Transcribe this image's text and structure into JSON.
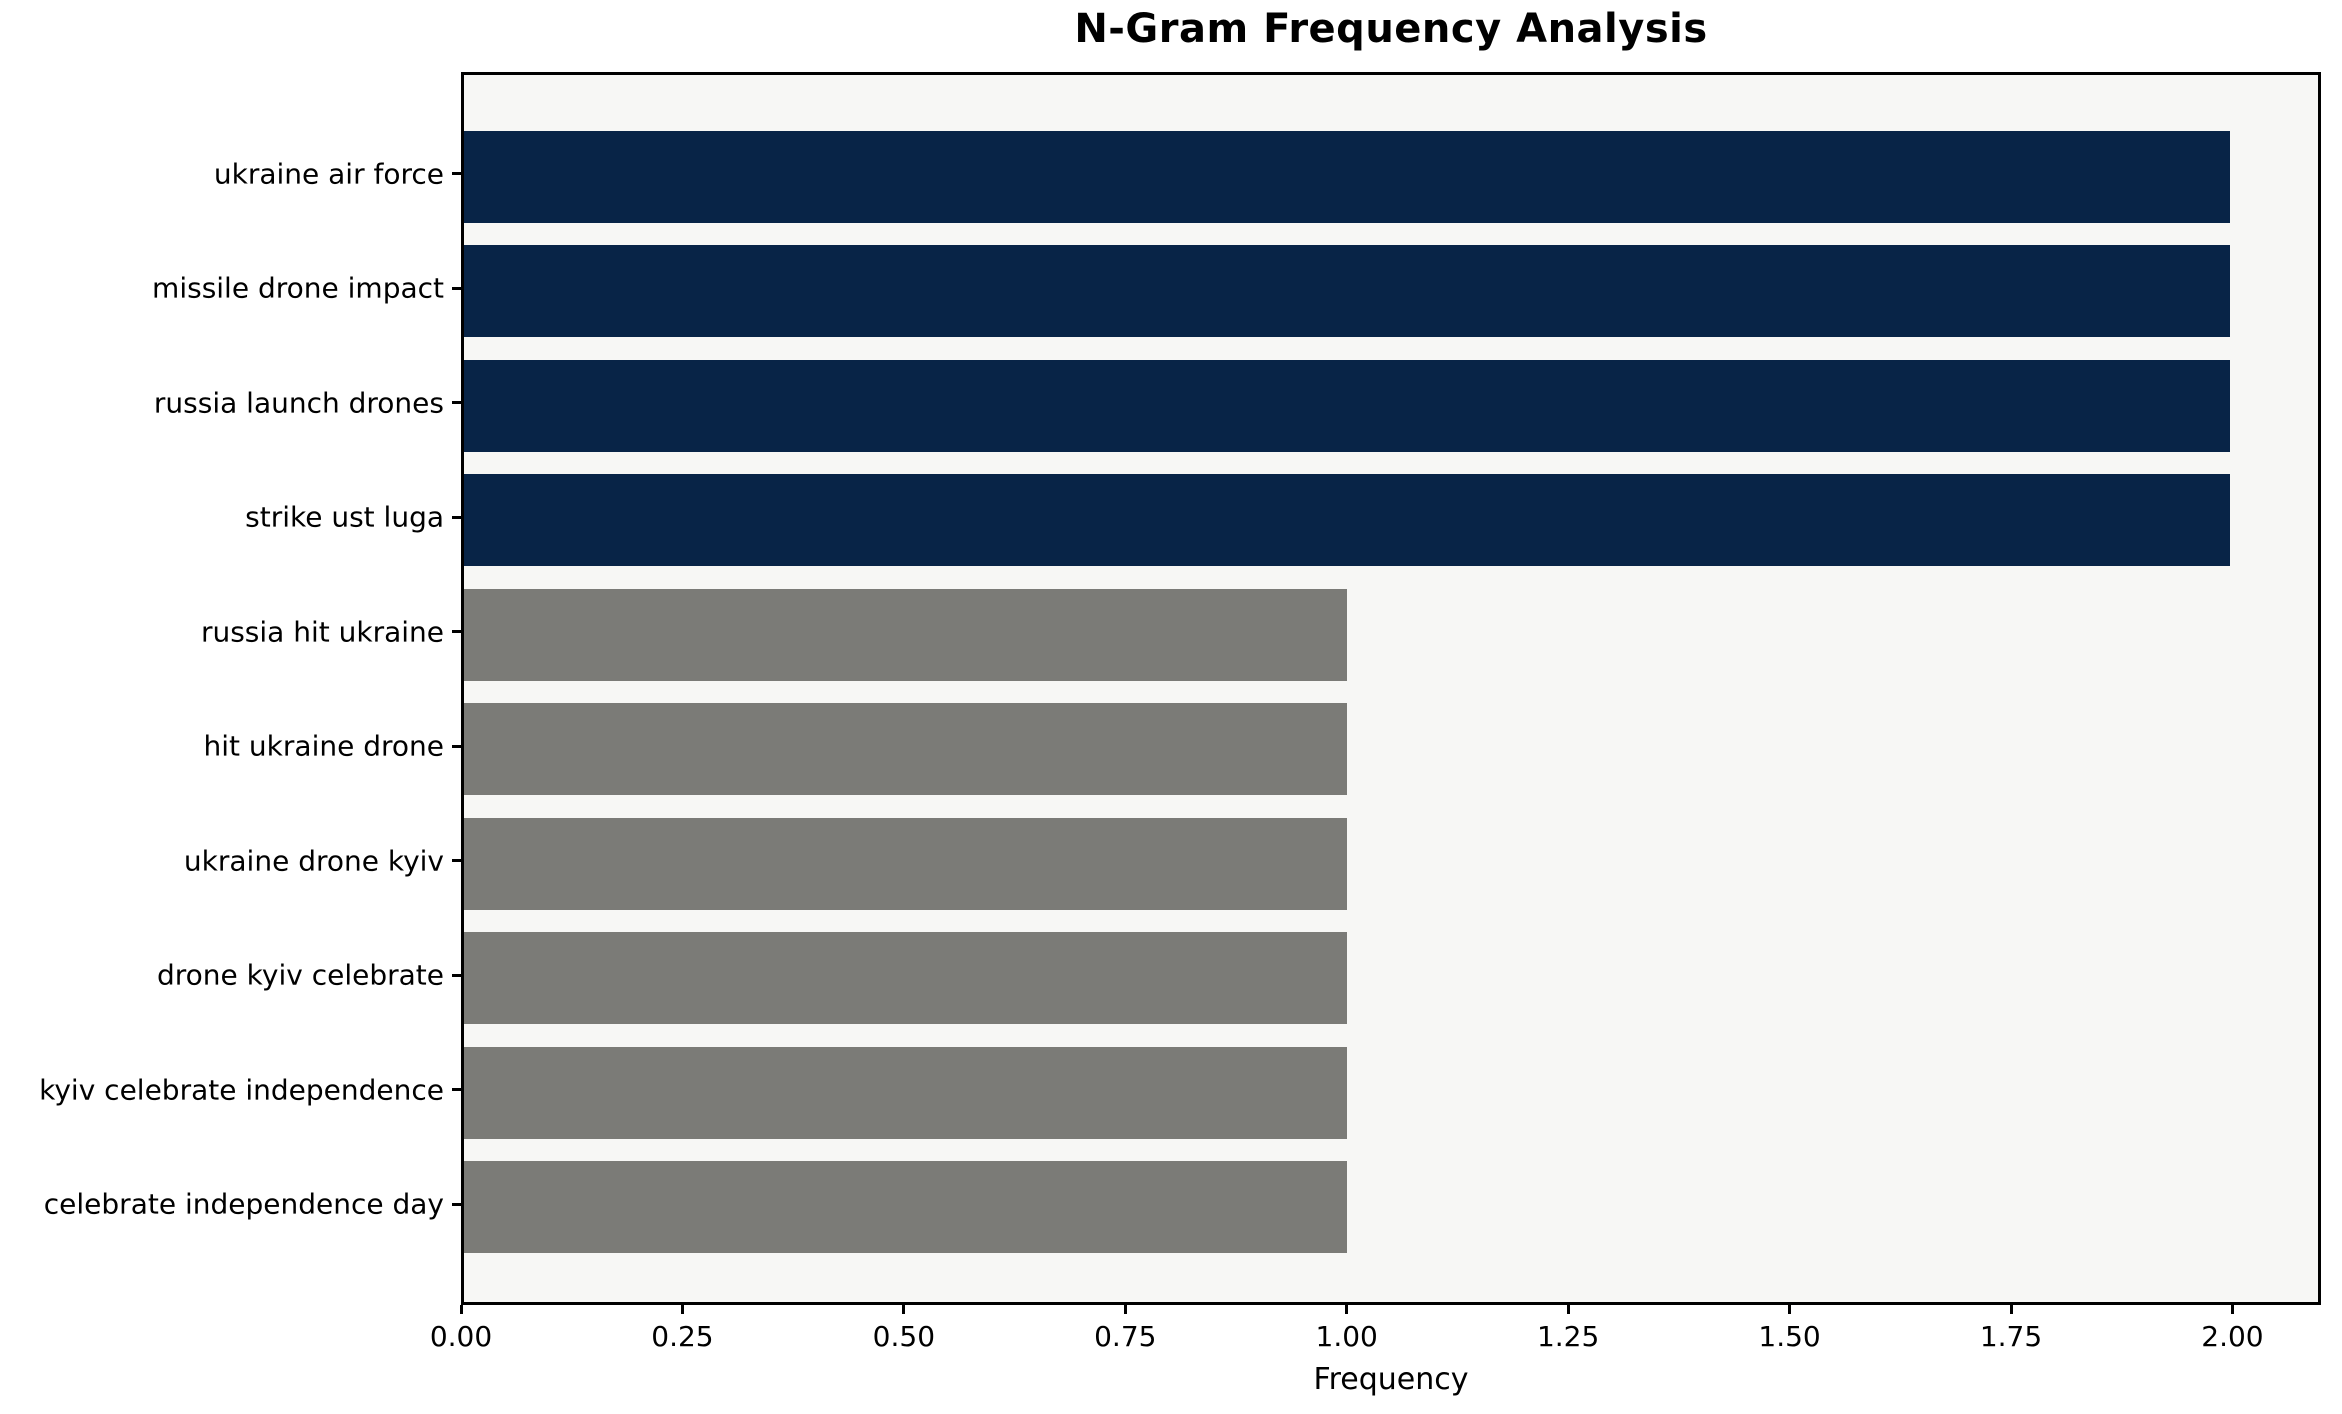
{
  "chart_data": {
    "type": "bar",
    "orientation": "horizontal",
    "title": "N-Gram Frequency Analysis",
    "xlabel": "Frequency",
    "ylabel": "",
    "categories": [
      "ukraine air force",
      "missile drone impact",
      "russia launch drones",
      "strike ust luga",
      "russia hit ukraine",
      "hit ukraine drone",
      "ukraine drone kyiv",
      "drone kyiv celebrate",
      "kyiv celebrate independence",
      "celebrate independence day"
    ],
    "values": [
      2,
      2,
      2,
      2,
      1,
      1,
      1,
      1,
      1,
      1
    ],
    "bar_colors": [
      "#082447",
      "#082447",
      "#082447",
      "#082447",
      "#7b7b77",
      "#7b7b77",
      "#7b7b77",
      "#7b7b77",
      "#7b7b77",
      "#7b7b77"
    ],
    "highlight_color": "#082447",
    "base_color": "#7b7b77",
    "plot_background": "#f7f7f5",
    "figure_background": "#ffffff",
    "axis_color": "#000000",
    "xlim": [
      0,
      2.1
    ],
    "x_tick_values": [
      0,
      0.25,
      0.5,
      0.75,
      1.0,
      1.25,
      1.5,
      1.75,
      2.0
    ],
    "x_tick_labels": [
      "0.00",
      "0.25",
      "0.50",
      "0.75",
      "1.00",
      "1.25",
      "1.50",
      "1.75",
      "2.00"
    ],
    "grid": false,
    "legend": null
  }
}
